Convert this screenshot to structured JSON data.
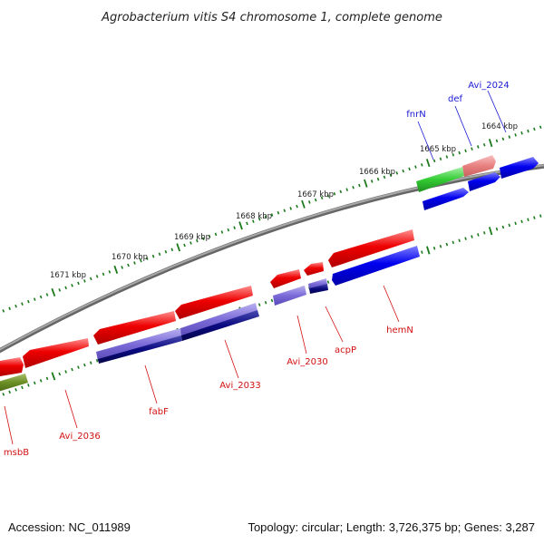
{
  "title": "Agrobacterium vitis S4 chromosome 1, complete genome",
  "footer": {
    "accession": "Accession: NC_011989",
    "summary": "Topology: circular; Length: 3,726,375 bp; Genes: 3,287"
  },
  "ruler_labels": [
    "1671 kbp",
    "1670 kbp",
    "1669 kbp",
    "1668 kbp",
    "1667 kbp",
    "1666 kbp",
    "1665 kbp",
    "1664 kbp"
  ],
  "gene_labels_below": [
    "msbB",
    "Avi_2036",
    "fabF",
    "Avi_2033",
    "Avi_2030",
    "acpP",
    "hemN"
  ],
  "gene_labels_above": [
    "fnrN",
    "def",
    "Avi_2024"
  ],
  "colors": {
    "forward": "#e00000",
    "reverse": "#0000e0",
    "green": "#33cc33",
    "olive": "#6b8e23",
    "pink": "#e88080",
    "lavender": "#7a6ad8",
    "navy": "#0a0a80",
    "backbone": "#8c8c8c",
    "ticks": "#1a7a1a"
  }
}
